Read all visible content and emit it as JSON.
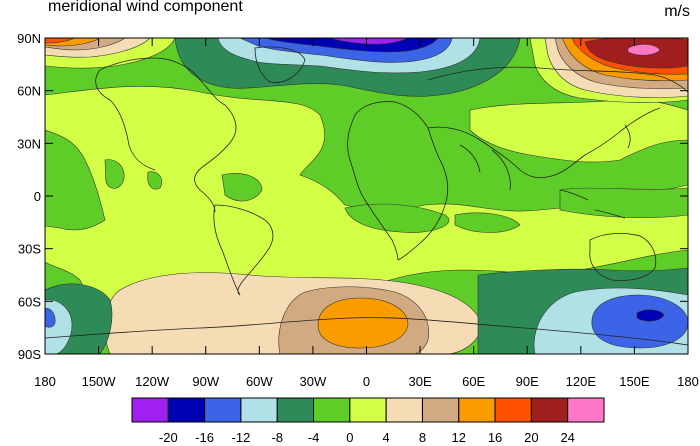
{
  "title": "meridional wind component",
  "units": "m/s",
  "lat_ticks": [
    "90N",
    "60N",
    "30N",
    "0",
    "30S",
    "60S",
    "90S"
  ],
  "lon_ticks": [
    "180",
    "150W",
    "120W",
    "90W",
    "60W",
    "30W",
    "0",
    "30E",
    "60E",
    "90E",
    "120E",
    "150E",
    "180"
  ],
  "colorbar": {
    "colors": [
      "#a020f0",
      "#0000b4",
      "#3c64e6",
      "#afe1e6",
      "#2e8b57",
      "#5fcd28",
      "#d2ff46",
      "#f5dcb4",
      "#d2aa82",
      "#fa9b00",
      "#ff5000",
      "#a01e1e",
      "#ff78c8"
    ],
    "labels": [
      "-20",
      "-16",
      "-12",
      "-8",
      "-4",
      "0",
      "4",
      "8",
      "12",
      "16",
      "20",
      "24"
    ]
  },
  "features": {
    "blue_low_north_atlantic": "#3c64e6",
    "red_high_northeast_asia": "#a01e1e",
    "orange_high_south_atlantic": "#fa9b00",
    "blue_low_southwest_pacific": "#3c64e6"
  }
}
